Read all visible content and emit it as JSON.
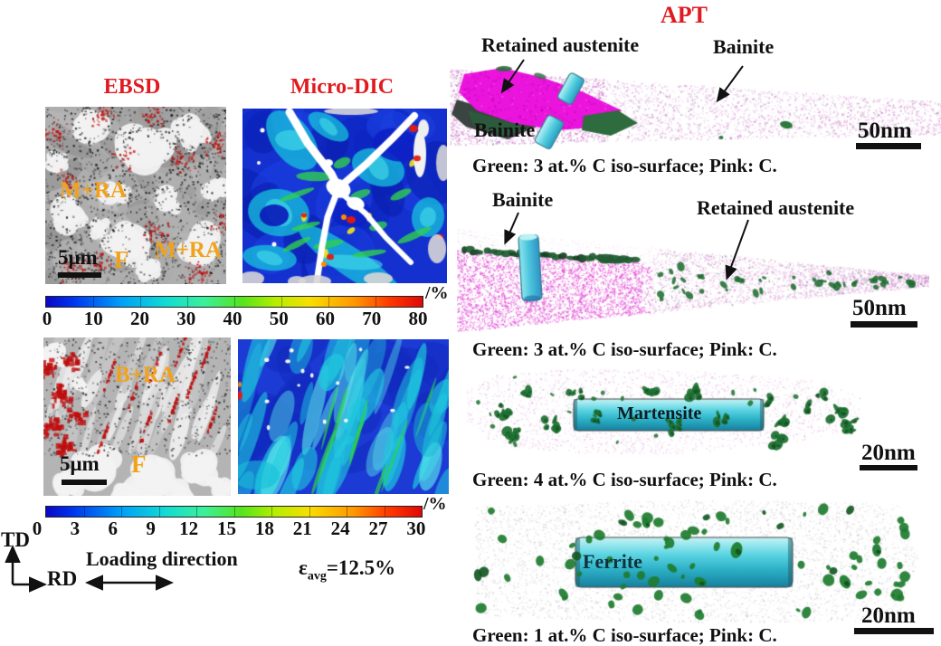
{
  "left_panel": {
    "ebsd_title": "EBSD",
    "dic_title": "Micro-DIC",
    "row1": {
      "label_m_ra_left": "M+RA",
      "label_m_ra_right": "M+RA",
      "label_f": "F",
      "scale_bar": "5μm"
    },
    "colorbar1": {
      "ticks": [
        "0",
        "10",
        "20",
        "30",
        "40",
        "50",
        "60",
        "70",
        "80"
      ],
      "unit": "/%"
    },
    "row2": {
      "label_b_ra": "B+RA",
      "label_f": "F",
      "scale_bar": "5μm"
    },
    "colorbar2": {
      "ticks": [
        "0",
        "3",
        "6",
        "9",
        "12",
        "15",
        "18",
        "21",
        "24",
        "27",
        "30"
      ],
      "unit": "/%"
    },
    "axis": {
      "td": "TD",
      "rd": "RD"
    },
    "loading_label": "Loading direction",
    "strain": {
      "symbol": "ε",
      "subscript": "avg",
      "value": "=12.5%"
    }
  },
  "apt_panel": {
    "title": "APT",
    "panel1": {
      "label_retained_austenite": "Retained austenite",
      "label_bainite_top": "Bainite",
      "label_bainite_inline": "Bainite",
      "scale_bar": "50nm",
      "caption": "Green: 3 at.% C iso-surface; Pink: C."
    },
    "panel2": {
      "label_bainite": "Bainite",
      "label_retained_austenite": "Retained austenite",
      "scale_bar": "50nm",
      "caption": "Green: 3 at.% C iso-surface; Pink: C."
    },
    "panel3": {
      "cylinder_label": "Martensite",
      "scale_bar": "20nm",
      "caption": "Green: 4 at.% C iso-surface; Pink: C."
    },
    "panel4": {
      "cylinder_label": "Ferrite",
      "scale_bar": "20nm",
      "caption": "Green: 1 at.% C iso-surface; Pink: C."
    }
  },
  "colors": {
    "title_red": "#e01b20",
    "region_label_orange": "#f2a21a",
    "iso_surface_green": "#1f7030",
    "carbon_pink": "#e24fd8",
    "cylinder_cyan": "#3fc3d6",
    "strain_map_blue": "#1430cf"
  }
}
